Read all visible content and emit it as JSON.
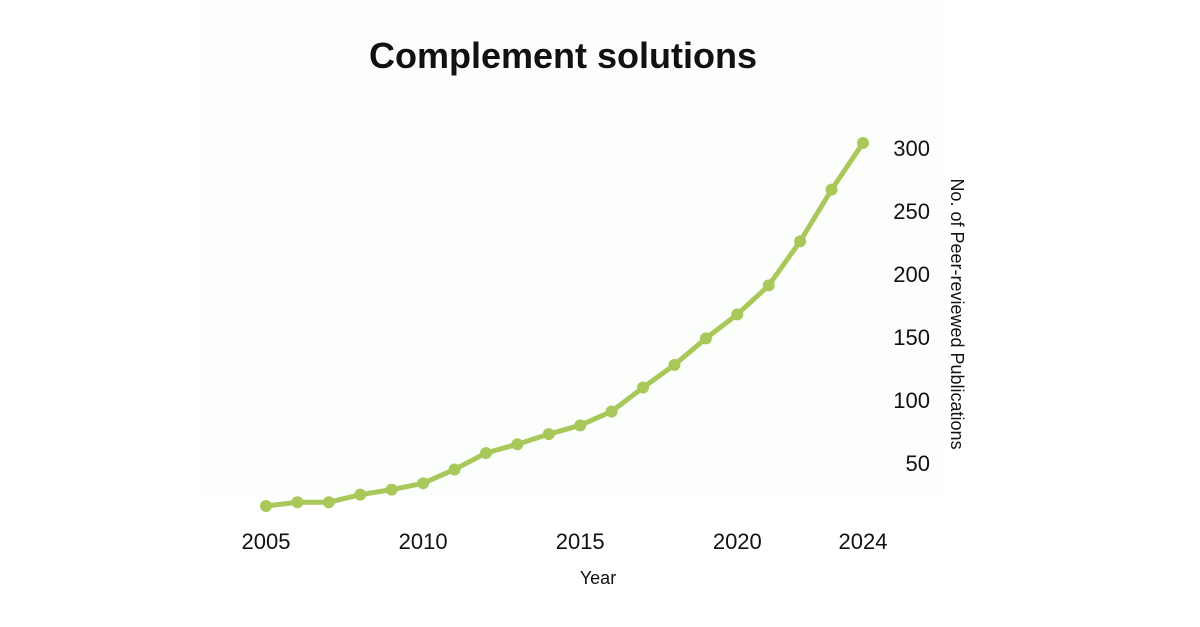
{
  "chart_data": {
    "type": "line",
    "title": "Complement solutions",
    "xlabel": "Year",
    "ylabel": "No. of Peer-reviewed Publications",
    "x": [
      2005,
      2006,
      2007,
      2008,
      2009,
      2010,
      2011,
      2012,
      2013,
      2014,
      2015,
      2016,
      2017,
      2018,
      2019,
      2020,
      2021,
      2022,
      2023,
      2024
    ],
    "series": [
      {
        "values": [
          16,
          19,
          19,
          25,
          29,
          34,
          45,
          58,
          65,
          73,
          80,
          91,
          110,
          128,
          149,
          168,
          191,
          226,
          267,
          304
        ]
      }
    ],
    "x_ticks": [
      "2005",
      "2010",
      "2015",
      "2020",
      "2024"
    ],
    "y_ticks": [
      "50",
      "100",
      "150",
      "200",
      "250",
      "300"
    ],
    "xlim": [
      2005,
      2024
    ],
    "ylim": [
      16,
      304
    ],
    "y_axis_position": "right",
    "grid": false,
    "line_color": "#a9c85a"
  }
}
